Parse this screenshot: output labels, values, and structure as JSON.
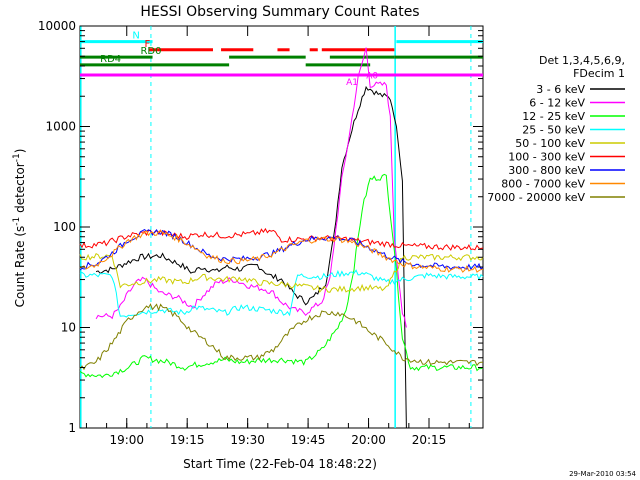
{
  "chart_data": {
    "type": "line",
    "title": "HESSI Observing Summary Count Rates",
    "xlabel": "Start Time (22-Feb-04 18:48:22)",
    "ylabel_main": "Count Rate (s",
    "ylabel_sup1": "-1",
    "ylabel_mid": " detector",
    "ylabel_sup2": "-1",
    "ylabel_end": ")",
    "yscale": "log",
    "ylim": [
      1,
      10000
    ],
    "xlim_minutes": [
      0,
      100
    ],
    "x_unit": "minutes after 18:48:22",
    "x_ticks": [
      {
        "t": 11.6,
        "label": "19:00"
      },
      {
        "t": 26.6,
        "label": "19:15"
      },
      {
        "t": 41.6,
        "label": "19:30"
      },
      {
        "t": 56.6,
        "label": "19:45"
      },
      {
        "t": 71.6,
        "label": "20:00"
      },
      {
        "t": 86.6,
        "label": "20:15"
      }
    ],
    "y_ticks": [
      {
        "v": 1,
        "label": "1"
      },
      {
        "v": 10,
        "label": "10"
      },
      {
        "v": 100,
        "label": "100"
      },
      {
        "v": 1000,
        "label": "1000"
      },
      {
        "v": 10000,
        "label": "10000"
      }
    ],
    "footer_timestamp": "29-Mar-2010 03:54",
    "legend": {
      "header1": "Det 1,3,4,5,6,9,",
      "header2": "FDecim 1",
      "placement": "right"
    },
    "series": [
      {
        "name": "3 - 6 keV",
        "color": "#000000",
        "points": [
          [
            4,
            36
          ],
          [
            8,
            38
          ],
          [
            12,
            45
          ],
          [
            15,
            50
          ],
          [
            20,
            52
          ],
          [
            25,
            42
          ],
          [
            28,
            35
          ],
          [
            30,
            40
          ],
          [
            34,
            36
          ],
          [
            36,
            40
          ],
          [
            40,
            38
          ],
          [
            44,
            42
          ],
          [
            47,
            33
          ],
          [
            50,
            30
          ],
          [
            53,
            22
          ],
          [
            56,
            18
          ],
          [
            58,
            20
          ],
          [
            61,
            28
          ],
          [
            63,
            80
          ],
          [
            65,
            400
          ],
          [
            67,
            800
          ],
          [
            69,
            1500
          ],
          [
            71,
            2500
          ],
          [
            74,
            2100
          ],
          [
            77,
            1900
          ],
          [
            78,
            1300
          ],
          [
            79,
            700
          ],
          [
            80,
            300
          ],
          [
            81,
            1
          ]
        ]
      },
      {
        "name": "6 - 12 keV",
        "color": "#ff00ff",
        "points": [
          [
            4,
            13
          ],
          [
            8,
            13
          ],
          [
            10,
            16
          ],
          [
            12,
            22
          ],
          [
            14,
            28
          ],
          [
            16,
            30
          ],
          [
            20,
            22
          ],
          [
            24,
            20
          ],
          [
            28,
            16
          ],
          [
            30,
            20
          ],
          [
            34,
            28
          ],
          [
            38,
            30
          ],
          [
            42,
            26
          ],
          [
            46,
            24
          ],
          [
            48,
            22
          ],
          [
            50,
            18
          ],
          [
            53,
            15
          ],
          [
            56,
            14
          ],
          [
            60,
            18
          ],
          [
            62,
            30
          ],
          [
            65,
            300
          ],
          [
            67,
            900
          ],
          [
            69,
            3000
          ],
          [
            71,
            6000
          ],
          [
            72,
            2600
          ],
          [
            76,
            2600
          ],
          [
            77,
            1200
          ],
          [
            78,
            80
          ],
          [
            80,
            14
          ],
          [
            81,
            10
          ]
        ]
      },
      {
        "name": "12 - 25 keV",
        "color": "#00ff00",
        "points": [
          [
            0,
            3.5
          ],
          [
            6,
            3.3
          ],
          [
            12,
            4
          ],
          [
            16,
            5
          ],
          [
            22,
            4.5
          ],
          [
            26,
            4
          ],
          [
            28,
            4.2
          ],
          [
            32,
            4.5
          ],
          [
            36,
            4.8
          ],
          [
            40,
            4.5
          ],
          [
            44,
            4.7
          ],
          [
            50,
            4.8
          ],
          [
            56,
            4.5
          ],
          [
            60,
            6
          ],
          [
            64,
            10
          ],
          [
            66,
            15
          ],
          [
            68,
            40
          ],
          [
            70,
            150
          ],
          [
            72,
            300
          ],
          [
            76,
            320
          ],
          [
            78,
            60
          ],
          [
            80,
            8
          ],
          [
            82,
            4
          ],
          [
            100,
            4
          ]
        ]
      },
      {
        "name": "25 - 50 keV",
        "color": "#00ffff",
        "points": [
          [
            0,
            33
          ],
          [
            8,
            33
          ],
          [
            10,
            13
          ],
          [
            14,
            14
          ],
          [
            20,
            15
          ],
          [
            26,
            14
          ],
          [
            28,
            16
          ],
          [
            32,
            15
          ],
          [
            36,
            14
          ],
          [
            40,
            16
          ],
          [
            46,
            15
          ],
          [
            52,
            14
          ],
          [
            54,
            33
          ],
          [
            60,
            32
          ],
          [
            66,
            35
          ],
          [
            70,
            35
          ],
          [
            76,
            28
          ],
          [
            80,
            30
          ],
          [
            86,
            33
          ],
          [
            92,
            32
          ],
          [
            100,
            32
          ]
        ]
      },
      {
        "name": "50 - 100 keV",
        "color": "#cccc00",
        "points": [
          [
            0,
            50
          ],
          [
            8,
            52
          ],
          [
            10,
            26
          ],
          [
            14,
            28
          ],
          [
            20,
            30
          ],
          [
            26,
            28
          ],
          [
            30,
            32
          ],
          [
            36,
            30
          ],
          [
            40,
            31
          ],
          [
            44,
            28
          ],
          [
            50,
            27
          ],
          [
            54,
            26
          ],
          [
            60,
            24
          ],
          [
            66,
            24
          ],
          [
            70,
            25
          ],
          [
            76,
            24
          ],
          [
            80,
            50
          ],
          [
            86,
            50
          ],
          [
            92,
            50
          ],
          [
            100,
            50
          ]
        ]
      },
      {
        "name": "100 - 300 keV",
        "color": "#ff0000",
        "points": [
          [
            0,
            65
          ],
          [
            6,
            68
          ],
          [
            12,
            82
          ],
          [
            18,
            90
          ],
          [
            22,
            85
          ],
          [
            26,
            80
          ],
          [
            30,
            85
          ],
          [
            36,
            82
          ],
          [
            42,
            85
          ],
          [
            46,
            90
          ],
          [
            48,
            90
          ],
          [
            50,
            75
          ],
          [
            56,
            76
          ],
          [
            60,
            78
          ],
          [
            66,
            76
          ],
          [
            70,
            72
          ],
          [
            76,
            68
          ],
          [
            80,
            65
          ],
          [
            86,
            64
          ],
          [
            92,
            63
          ],
          [
            100,
            62
          ]
        ]
      },
      {
        "name": "300 - 800 keV",
        "color": "#0000ff",
        "points": [
          [
            0,
            40
          ],
          [
            4,
            43
          ],
          [
            8,
            55
          ],
          [
            12,
            75
          ],
          [
            16,
            88
          ],
          [
            20,
            90
          ],
          [
            24,
            80
          ],
          [
            28,
            65
          ],
          [
            32,
            52
          ],
          [
            36,
            48
          ],
          [
            40,
            48
          ],
          [
            44,
            50
          ],
          [
            48,
            55
          ],
          [
            52,
            65
          ],
          [
            56,
            75
          ],
          [
            60,
            78
          ],
          [
            64,
            78
          ],
          [
            68,
            72
          ],
          [
            72,
            62
          ],
          [
            76,
            52
          ],
          [
            80,
            45
          ],
          [
            84,
            42
          ],
          [
            92,
            40
          ],
          [
            100,
            40
          ]
        ]
      },
      {
        "name": "800 - 7000 keV",
        "color": "#ff8800",
        "points": [
          [
            0,
            38
          ],
          [
            4,
            42
          ],
          [
            8,
            54
          ],
          [
            12,
            74
          ],
          [
            16,
            86
          ],
          [
            20,
            88
          ],
          [
            24,
            78
          ],
          [
            28,
            64
          ],
          [
            32,
            51
          ],
          [
            36,
            46
          ],
          [
            40,
            46
          ],
          [
            44,
            48
          ],
          [
            48,
            54
          ],
          [
            52,
            64
          ],
          [
            56,
            73
          ],
          [
            60,
            76
          ],
          [
            64,
            76
          ],
          [
            68,
            70
          ],
          [
            72,
            60
          ],
          [
            76,
            50
          ],
          [
            80,
            43
          ],
          [
            84,
            40
          ],
          [
            92,
            38
          ],
          [
            100,
            38
          ]
        ]
      },
      {
        "name": "7000 - 20000 keV",
        "color": "#808000",
        "points": [
          [
            0,
            3.8
          ],
          [
            4,
            4.5
          ],
          [
            8,
            7
          ],
          [
            12,
            12
          ],
          [
            16,
            16
          ],
          [
            20,
            16
          ],
          [
            24,
            13
          ],
          [
            28,
            9
          ],
          [
            32,
            7
          ],
          [
            36,
            5
          ],
          [
            40,
            5
          ],
          [
            44,
            5
          ],
          [
            48,
            6
          ],
          [
            52,
            9
          ],
          [
            56,
            12
          ],
          [
            60,
            14
          ],
          [
            64,
            14
          ],
          [
            68,
            12
          ],
          [
            72,
            9
          ],
          [
            76,
            7
          ],
          [
            80,
            5
          ],
          [
            86,
            4.5
          ],
          [
            92,
            4.5
          ],
          [
            100,
            4.5
          ]
        ]
      }
    ],
    "attenuator_labels": [
      {
        "text": "A1",
        "t": 67.5,
        "v": 2600,
        "color": "#ff00ff"
      },
      {
        "text": "A0",
        "t": 72.5,
        "v": 3000,
        "color": "#ff00ff"
      }
    ],
    "flag_bars": [
      {
        "label": "N",
        "color": "#00ffff",
        "v": 7000,
        "label_t": 13,
        "segments": [
          [
            0,
            18
          ],
          [
            78.5,
            100
          ]
        ]
      },
      {
        "label": "F",
        "color": "#ff0000",
        "v": 5800,
        "label_t": 16,
        "segments": [
          [
            17,
            33
          ],
          [
            35,
            43
          ],
          [
            49,
            52
          ],
          [
            57,
            59
          ],
          [
            60,
            78
          ]
        ]
      },
      {
        "label": "RD0",
        "color": "#008000",
        "v": 4900,
        "label_t": 15,
        "segments": [
          [
            0,
            18
          ],
          [
            37,
            56
          ],
          [
            62,
            78
          ],
          [
            78,
            100
          ]
        ]
      },
      {
        "label": "RD4",
        "color": "#008000",
        "v": 4100,
        "label_t": 5,
        "segments": [
          [
            0,
            37
          ],
          [
            56,
            72
          ]
        ]
      },
      {
        "label": "",
        "color": "#ff00ff",
        "v": 3250,
        "label_t": 0,
        "segments": [
          [
            0,
            100
          ]
        ]
      }
    ],
    "dashed_vlines": [
      {
        "t": 17.6,
        "color": "#00ffff"
      },
      {
        "t": 97.0,
        "color": "#00ffff"
      }
    ],
    "solid_vlines": [
      {
        "t": 0.2,
        "color": "#00ffff"
      },
      {
        "t": 78.2,
        "color": "#00ffff"
      }
    ]
  }
}
